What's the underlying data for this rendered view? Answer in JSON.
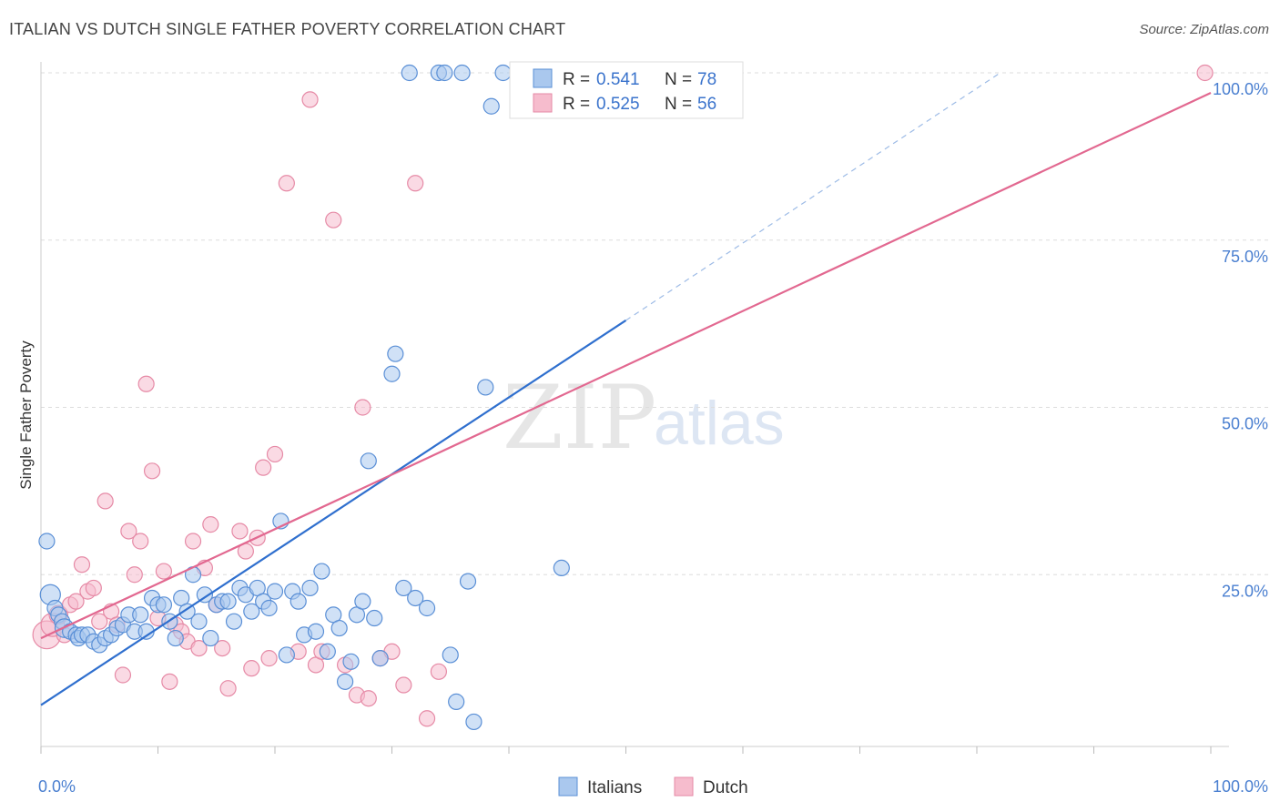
{
  "header": {
    "title": "ITALIAN VS DUTCH SINGLE FATHER POVERTY CORRELATION CHART",
    "source": "Source: ZipAtlas.com"
  },
  "watermark": {
    "zip": "ZIP",
    "atlas": "atlas"
  },
  "legend": {
    "r_label": "R =",
    "n_label": "N =",
    "italians": {
      "r": "0.541",
      "n": "78"
    },
    "dutch": {
      "r": "0.525",
      "n": "56"
    }
  },
  "bottom_legend": {
    "italians": "Italians",
    "dutch": "Dutch"
  },
  "colors": {
    "italians_fill": "#aac8ee",
    "italians_stroke": "#5a8fd6",
    "italians_line": "#2f6fce",
    "dutch_fill": "#f6bccd",
    "dutch_stroke": "#e68aa6",
    "dutch_line": "#e26890",
    "tick_text": "#4a7fd0",
    "grid": "#dddddd"
  },
  "chart_data": {
    "type": "scatter",
    "title": "ITALIAN VS DUTCH SINGLE FATHER POVERTY CORRELATION CHART",
    "xlabel": "",
    "ylabel": "Single Father Poverty",
    "xlim": [
      0,
      100
    ],
    "ylim": [
      0,
      100
    ],
    "x_tick_labels": [
      "0.0%",
      "100.0%"
    ],
    "y_ticks": [
      25,
      50,
      75,
      100
    ],
    "y_tick_labels": [
      "25.0%",
      "50.0%",
      "75.0%",
      "100.0%"
    ],
    "series": [
      {
        "name": "Italians",
        "R": 0.541,
        "N": 78,
        "trend": {
          "x0": 0,
          "y0": 5.5,
          "x1": 50,
          "y1": 63,
          "dashed_to_x": 82,
          "dashed_to_y": 100
        },
        "points": [
          [
            0.5,
            30,
            1
          ],
          [
            0.8,
            22,
            1.3
          ],
          [
            1.2,
            20,
            1
          ],
          [
            1.5,
            19,
            1
          ],
          [
            1.8,
            18,
            1
          ],
          [
            2,
            17,
            1.2
          ],
          [
            2.5,
            16.5,
            1
          ],
          [
            3,
            16,
            1
          ],
          [
            3.2,
            15.5,
            1
          ],
          [
            3.5,
            16,
            1
          ],
          [
            4,
            16,
            1
          ],
          [
            4.5,
            15,
            1
          ],
          [
            5,
            14.5,
            1
          ],
          [
            5.5,
            15.5,
            1
          ],
          [
            6,
            16,
            1
          ],
          [
            6.5,
            17,
            1
          ],
          [
            7,
            17.5,
            1
          ],
          [
            7.5,
            19,
            1
          ],
          [
            8,
            16.5,
            1
          ],
          [
            8.5,
            19,
            1
          ],
          [
            9,
            16.5,
            1
          ],
          [
            9.5,
            21.5,
            1
          ],
          [
            10,
            20.5,
            1
          ],
          [
            10.5,
            20.5,
            1
          ],
          [
            11,
            18,
            1
          ],
          [
            11.5,
            15.5,
            1
          ],
          [
            12,
            21.5,
            1
          ],
          [
            12.5,
            19.5,
            1
          ],
          [
            13,
            25,
            1
          ],
          [
            13.5,
            18,
            1
          ],
          [
            14,
            22,
            1
          ],
          [
            14.5,
            15.5,
            1
          ],
          [
            15,
            20.5,
            1
          ],
          [
            15.5,
            21,
            1
          ],
          [
            16,
            21,
            1
          ],
          [
            16.5,
            18,
            1
          ],
          [
            17,
            23,
            1
          ],
          [
            17.5,
            22,
            1
          ],
          [
            18,
            19.5,
            1
          ],
          [
            18.5,
            23,
            1
          ],
          [
            19,
            21,
            1
          ],
          [
            19.5,
            20,
            1
          ],
          [
            20,
            22.5,
            1
          ],
          [
            20.5,
            33,
            1
          ],
          [
            21,
            13,
            1
          ],
          [
            21.5,
            22.5,
            1
          ],
          [
            22,
            21,
            1
          ],
          [
            22.5,
            16,
            1
          ],
          [
            23,
            23,
            1
          ],
          [
            23.5,
            16.5,
            1
          ],
          [
            24,
            25.5,
            1
          ],
          [
            24.5,
            13.5,
            1
          ],
          [
            25,
            19,
            1
          ],
          [
            25.5,
            17,
            1
          ],
          [
            26,
            9,
            1
          ],
          [
            26.5,
            12,
            1
          ],
          [
            27,
            19,
            1
          ],
          [
            27.5,
            21,
            1
          ],
          [
            28,
            42,
            1
          ],
          [
            28.5,
            18.5,
            1
          ],
          [
            29,
            12.5,
            1
          ],
          [
            30,
            55,
            1
          ],
          [
            30.3,
            58,
            1
          ],
          [
            31,
            23,
            1
          ],
          [
            31.5,
            100,
            1
          ],
          [
            32,
            21.5,
            1
          ],
          [
            33,
            20,
            1
          ],
          [
            34,
            100,
            1
          ],
          [
            34.5,
            100,
            1
          ],
          [
            35,
            13,
            1
          ],
          [
            35.5,
            6,
            1
          ],
          [
            36,
            100,
            1
          ],
          [
            36.5,
            24,
            1
          ],
          [
            37,
            3,
            1
          ],
          [
            38,
            53,
            1
          ],
          [
            38.5,
            95,
            1
          ],
          [
            39.5,
            100,
            1
          ],
          [
            44.5,
            26,
            1
          ]
        ]
      },
      {
        "name": "Dutch",
        "R": 0.525,
        "N": 56,
        "trend": {
          "x0": 0,
          "y0": 15.5,
          "x1": 100,
          "y1": 97
        },
        "points": [
          [
            0.5,
            16,
            1.8
          ],
          [
            1,
            17.5,
            1.5
          ],
          [
            1.5,
            19,
            1.2
          ],
          [
            2,
            16,
            1
          ],
          [
            2.5,
            20.5,
            1
          ],
          [
            3,
            21,
            1
          ],
          [
            3.5,
            26.5,
            1
          ],
          [
            4,
            22.5,
            1
          ],
          [
            4.5,
            23,
            1
          ],
          [
            5,
            18,
            1
          ],
          [
            5.5,
            36,
            1
          ],
          [
            6,
            19.5,
            1
          ],
          [
            6.5,
            17.5,
            1
          ],
          [
            7,
            10,
            1
          ],
          [
            7.5,
            31.5,
            1
          ],
          [
            8,
            25,
            1
          ],
          [
            8.5,
            30,
            1
          ],
          [
            9,
            53.5,
            1
          ],
          [
            9.5,
            40.5,
            1
          ],
          [
            10,
            18.5,
            1
          ],
          [
            10.5,
            25.5,
            1
          ],
          [
            11,
            9,
            1
          ],
          [
            11.5,
            17.5,
            1
          ],
          [
            12,
            16.5,
            1
          ],
          [
            12.5,
            15,
            1
          ],
          [
            13,
            30,
            1
          ],
          [
            13.5,
            14,
            1
          ],
          [
            14,
            26,
            1
          ],
          [
            14.5,
            32.5,
            1
          ],
          [
            15,
            20.5,
            1
          ],
          [
            15.5,
            14,
            1
          ],
          [
            16,
            8,
            1
          ],
          [
            17,
            31.5,
            1
          ],
          [
            17.5,
            28.5,
            1
          ],
          [
            18,
            11,
            1
          ],
          [
            18.5,
            30.5,
            1
          ],
          [
            19,
            41,
            1
          ],
          [
            19.5,
            12.5,
            1
          ],
          [
            20,
            43,
            1
          ],
          [
            21,
            83.5,
            1
          ],
          [
            22,
            13.5,
            1
          ],
          [
            23,
            96,
            1
          ],
          [
            23.5,
            11.5,
            1
          ],
          [
            24,
            13.5,
            1
          ],
          [
            25,
            78,
            1
          ],
          [
            26,
            11.5,
            1
          ],
          [
            27,
            7,
            1
          ],
          [
            27.5,
            50,
            1
          ],
          [
            28,
            6.5,
            1
          ],
          [
            29,
            12.5,
            1
          ],
          [
            30,
            13.5,
            1
          ],
          [
            31,
            8.5,
            1
          ],
          [
            32,
            83.5,
            1
          ],
          [
            33,
            3.5,
            1
          ],
          [
            34,
            10.5,
            1
          ],
          [
            99.5,
            100,
            1
          ]
        ]
      }
    ]
  }
}
